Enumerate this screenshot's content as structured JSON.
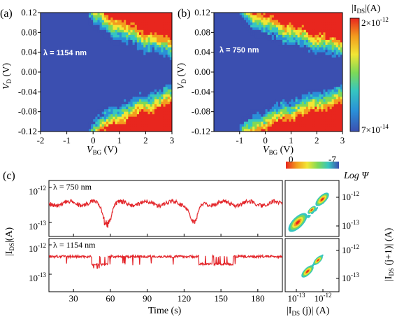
{
  "panels": {
    "a": {
      "label": "(a)",
      "wavelength": "λ = 1154 nm"
    },
    "b": {
      "label": "(b)",
      "wavelength": "λ = 750 nm"
    },
    "c": {
      "label": "(c)",
      "trace_top": "λ = 750 nm",
      "trace_bottom": "λ = 1154 nm"
    }
  },
  "colorbar": {
    "title": "|I_DS|(A)",
    "title_main": "|I",
    "title_sub": "DS",
    "title_end": "|(A)",
    "max_label": "2×10",
    "max_exp": "-12",
    "min_label": "7×10",
    "min_exp": "-14",
    "colors": [
      "#3b4fb0",
      "#2a8fd8",
      "#36c6c0",
      "#7ed957",
      "#f2e635",
      "#f39c1e",
      "#e8261e"
    ]
  },
  "logpsi_bar": {
    "left_label": "0",
    "right_label": "-7",
    "title": "Log Ψ"
  },
  "chart_data": [
    {
      "type": "heatmap",
      "panel": "(a)",
      "xlabel": "V_BG (V)",
      "ylabel": "V_D (V)",
      "xlim": [
        -2,
        3
      ],
      "ylim": [
        -0.12,
        0.12
      ],
      "x_ticks": [
        "-2",
        "-1",
        "0",
        "1",
        "2",
        "3"
      ],
      "y_ticks": [
        "0.12",
        "0.08",
        "0.04",
        "0.00",
        "-0.04",
        "-0.08",
        "-0.12"
      ],
      "annotation": "λ = 1154 nm",
      "onset_vbg": -0.2
    },
    {
      "type": "heatmap",
      "panel": "(b)",
      "xlabel": "V_BG (V)",
      "ylabel": "V_D (V)",
      "xlim": [
        -2,
        3
      ],
      "ylim": [
        -0.12,
        0.12
      ],
      "x_ticks": [
        "-1",
        "0",
        "1",
        "2",
        "3"
      ],
      "y_ticks": [
        "0.12",
        "0.08",
        "0.04",
        "0.00",
        "-0.04",
        "-0.08",
        "-0.12"
      ],
      "annotation": "λ = 750 nm",
      "onset_vbg": -1.0
    },
    {
      "type": "line",
      "panel": "(c) top",
      "annotation": "λ = 750 nm",
      "ylabel": "|I_DS|(A)",
      "xlim": [
        10,
        200
      ],
      "yscale": "log",
      "y_ticks": [
        "10^-12",
        "10^-13"
      ],
      "base_level": 3.5e-13,
      "dips": [
        {
          "t": 57,
          "i": 1.1e-13
        },
        {
          "t": 128,
          "i": 1e-13
        }
      ]
    },
    {
      "type": "line",
      "panel": "(c) bottom",
      "annotation": "λ = 1154 nm",
      "xlabel": "Time (s)",
      "xlim": [
        10,
        200
      ],
      "x_ticks": [
        "30",
        "60",
        "90",
        "120",
        "150",
        "180"
      ],
      "yscale": "log",
      "y_ticks": [
        "10^-12",
        "10^-13"
      ],
      "high_level": 4e-13,
      "low_level": 2.2e-13,
      "low_intervals": [
        [
          45,
          58
        ],
        [
          132,
          160
        ]
      ]
    },
    {
      "type": "scatter",
      "panel": "(c) right",
      "xlabel": "|I_DS (j)| (A)",
      "ylabel": "|I_DS (j+1)| (A)",
      "x_ticks": [
        "10^-13",
        "10^-12"
      ],
      "y_ticks": [
        "10^-12",
        "10^-13"
      ]
    }
  ],
  "axis_text": {
    "vbg": "V",
    "vbg_sub": "BG",
    "vbg_unit": " (V)",
    "vd": "V",
    "vd_sub": "D",
    "vd_unit": " (V)",
    "time": "Time (s)",
    "ids_main": "|I",
    "ids_sub": "DS",
    "ids_unit": "|(A)",
    "jx_main": "|I",
    "jx_sub": "DS",
    "jx_unit": " (j)| (A)",
    "jy_main": "|I",
    "jy_sub": "DS",
    "jy_unit": " (j+1)| (A)",
    "ten": "10",
    "e12": "-12",
    "e13": "-13"
  }
}
